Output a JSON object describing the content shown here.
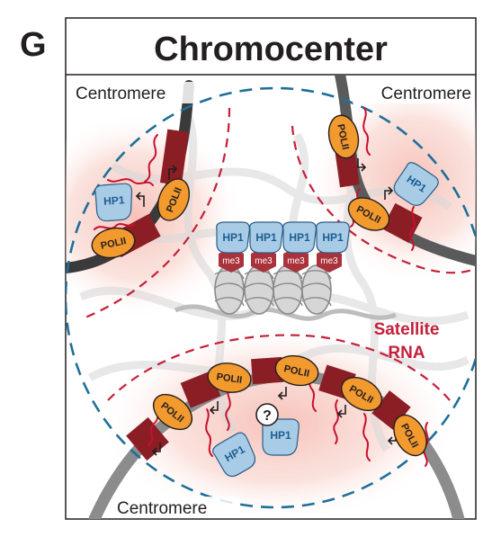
{
  "panel_letter": "G",
  "title": "Chromocenter",
  "centromere_labels": [
    "Centromere",
    "Centromere",
    "Centromere"
  ],
  "satellite_label": [
    "Satellite",
    "RNA"
  ],
  "hp1_label": "HP1",
  "me3_label": "me3",
  "polii_label": "POLII",
  "question_mark": "?",
  "colors": {
    "title_text": "#231f20",
    "chromatin_dark": "#3a3a3a",
    "chromatin_grey": "#8c8c8c",
    "satellite_red": "#c4203a",
    "rna_red": "#c8102e",
    "polii_orange": "#f29a2e",
    "hp1_blue": "#a8cbe6",
    "hp1_text": "#1d5e93",
    "me3_red": "#a9323b",
    "nucleus_dash": "#1f6f99",
    "halo_pink": "#f7c9c1"
  }
}
